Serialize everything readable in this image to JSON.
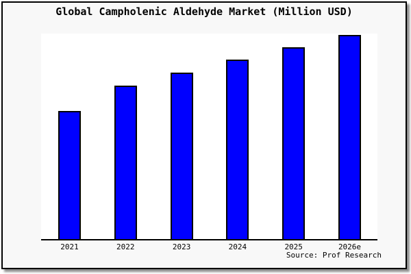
{
  "title": "Global Campholenic Aldehyde Market (Million USD)",
  "source_credit": "Source: Prof Research",
  "colors": {
    "bar_fill": "#0000ff",
    "bar_border": "#000000",
    "frame_bg": "#f8f8f8",
    "plot_bg": "#ffffff",
    "axis": "#000000"
  },
  "chart_data": {
    "type": "bar",
    "title": "Global Campholenic Aldehyde Market (Million USD)",
    "categories": [
      "2021",
      "2022",
      "2023",
      "2024",
      "2025",
      "2026e"
    ],
    "values": [
      187,
      224,
      243,
      262,
      280,
      298
    ],
    "units": "relative height (no y-axis scale or value labels shown in image)",
    "xlabel": "",
    "ylabel": "",
    "ylim": [
      0,
      300
    ],
    "grid": false,
    "legend": false,
    "y_axis_visible": false,
    "annotations": [
      "Source: Prof Research"
    ]
  }
}
